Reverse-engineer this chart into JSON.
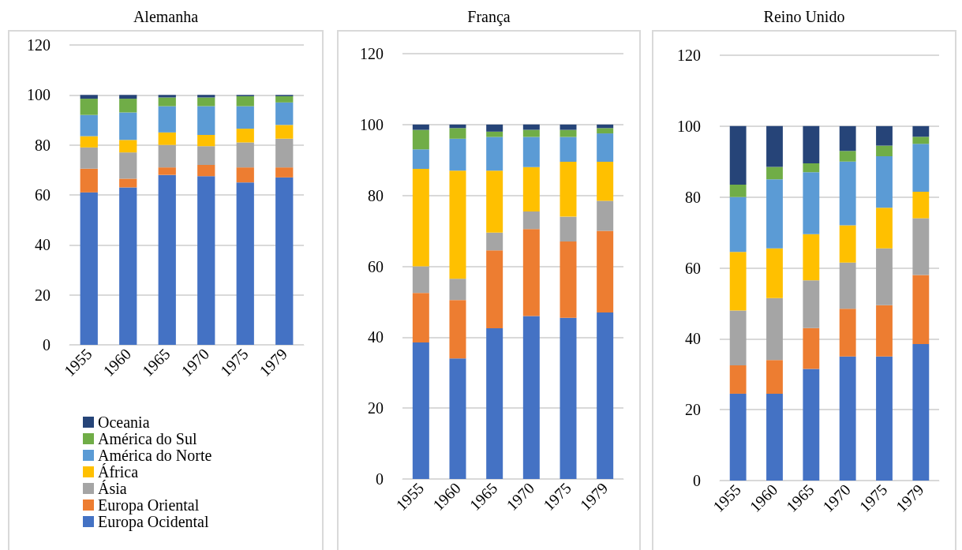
{
  "chart_data": [
    {
      "type": "bar",
      "title": "Alemanha",
      "stacked": true,
      "categories": [
        "1955",
        "1960",
        "1965",
        "1970",
        "1975",
        "1979"
      ],
      "ylim": [
        0,
        120
      ],
      "yticks": [
        0,
        20,
        40,
        60,
        80,
        100,
        120
      ],
      "grid": "y",
      "legend": "bottom",
      "series": [
        {
          "name": "Europa Ocidental",
          "color": "#4472c4",
          "values": [
            61,
            63,
            68,
            67.5,
            65,
            67
          ]
        },
        {
          "name": "Europa Oriental",
          "color": "#ed7d31",
          "values": [
            9.5,
            3.5,
            3,
            4.5,
            6,
            4
          ]
        },
        {
          "name": "Ásia",
          "color": "#a5a5a5",
          "values": [
            8.5,
            10.5,
            9,
            7.5,
            10,
            11.5
          ]
        },
        {
          "name": "África",
          "color": "#ffc000",
          "values": [
            4.5,
            5,
            5,
            4.5,
            5.5,
            5.5
          ]
        },
        {
          "name": "América do Norte",
          "color": "#5b9bd5",
          "values": [
            8.5,
            11,
            10.5,
            11.5,
            9,
            9
          ]
        },
        {
          "name": "América do Sul",
          "color": "#70ad47",
          "values": [
            6.5,
            5.5,
            3.5,
            3.5,
            4,
            2.5
          ]
        },
        {
          "name": "Oceania",
          "color": "#264478",
          "values": [
            1.5,
            1.5,
            1,
            1,
            0.5,
            0.5
          ]
        }
      ]
    },
    {
      "type": "bar",
      "title": "França",
      "stacked": true,
      "categories": [
        "1955",
        "1960",
        "1965",
        "1970",
        "1975",
        "1979"
      ],
      "ylim": [
        0,
        120
      ],
      "yticks": [
        0,
        20,
        40,
        60,
        80,
        100,
        120
      ],
      "grid": "y",
      "series": [
        {
          "color": "#4472c4",
          "values": [
            38.5,
            34,
            42.5,
            46,
            45.5,
            47
          ]
        },
        {
          "color": "#ed7d31",
          "values": [
            14,
            16.5,
            22,
            24.5,
            21.5,
            23
          ]
        },
        {
          "color": "#a5a5a5",
          "values": [
            7.5,
            6,
            5,
            5,
            7,
            8.5
          ]
        },
        {
          "color": "#ffc000",
          "values": [
            27.5,
            30.5,
            17.5,
            12.5,
            15.5,
            11
          ]
        },
        {
          "color": "#5b9bd5",
          "values": [
            5.5,
            9,
            9.5,
            8.5,
            7,
            8
          ]
        },
        {
          "color": "#70ad47",
          "values": [
            5.5,
            3,
            1.5,
            2,
            2,
            1.5
          ]
        },
        {
          "color": "#264478",
          "values": [
            1.5,
            1,
            2,
            1.5,
            1.5,
            1
          ]
        }
      ]
    },
    {
      "type": "bar",
      "title": "Reino Unido",
      "stacked": true,
      "categories": [
        "1955",
        "1960",
        "1965",
        "1970",
        "1975",
        "1979"
      ],
      "ylim": [
        0,
        120
      ],
      "yticks": [
        0,
        20,
        40,
        60,
        80,
        100,
        120
      ],
      "grid": "y",
      "series": [
        {
          "color": "#4472c4",
          "values": [
            24.5,
            24.5,
            31.5,
            35,
            35,
            38.5
          ]
        },
        {
          "color": "#ed7d31",
          "values": [
            8,
            9.5,
            11.5,
            13.5,
            14.5,
            19.5
          ]
        },
        {
          "color": "#a5a5a5",
          "values": [
            15.5,
            17.5,
            13.5,
            13,
            16,
            16
          ]
        },
        {
          "color": "#ffc000",
          "values": [
            16.5,
            14,
            13,
            10.5,
            11.5,
            7.5
          ]
        },
        {
          "color": "#5b9bd5",
          "values": [
            15.5,
            19.5,
            17.5,
            18,
            14.5,
            13.5
          ]
        },
        {
          "color": "#70ad47",
          "values": [
            3.5,
            3.5,
            2.5,
            3,
            3,
            2
          ]
        },
        {
          "color": "#264478",
          "values": [
            16.5,
            11.5,
            10.5,
            7,
            5.5,
            3
          ]
        }
      ]
    }
  ]
}
